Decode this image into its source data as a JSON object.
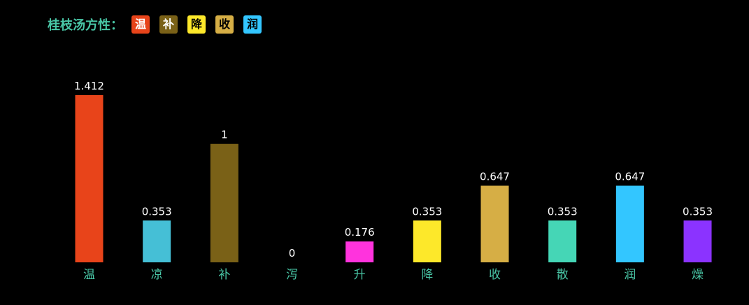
{
  "title": "桂枝汤方性：",
  "badges": [
    {
      "label": "温",
      "color": "#e8441a",
      "text_color": "#ffffff"
    },
    {
      "label": "补",
      "color": "#7a6117",
      "text_color": "#ffffff"
    },
    {
      "label": "降",
      "color": "#fde82a",
      "text_color": "#000000"
    },
    {
      "label": "收",
      "color": "#d6ae45",
      "text_color": "#000000"
    },
    {
      "label": "润",
      "color": "#33c6ff",
      "text_color": "#000000"
    }
  ],
  "chart_data": {
    "type": "bar",
    "categories": [
      "温",
      "凉",
      "补",
      "泻",
      "升",
      "降",
      "收",
      "散",
      "润",
      "燥"
    ],
    "values": [
      1.412,
      0.353,
      1,
      0,
      0.176,
      0.353,
      0.647,
      0.353,
      0.647,
      0.353
    ],
    "value_labels": [
      "1.412",
      "0.353",
      "1",
      "0",
      "0.176",
      "0.353",
      "0.647",
      "0.353",
      "0.647",
      "0.353"
    ],
    "colors": [
      "#e8441a",
      "#45bfd6",
      "#7a6117",
      "#3d6fd0",
      "#ff33dd",
      "#fde82a",
      "#d6ae45",
      "#45d6b6",
      "#33c6ff",
      "#8b33ff"
    ],
    "ylim": [
      0,
      1.412
    ],
    "grid": false,
    "legend": "top-left"
  }
}
